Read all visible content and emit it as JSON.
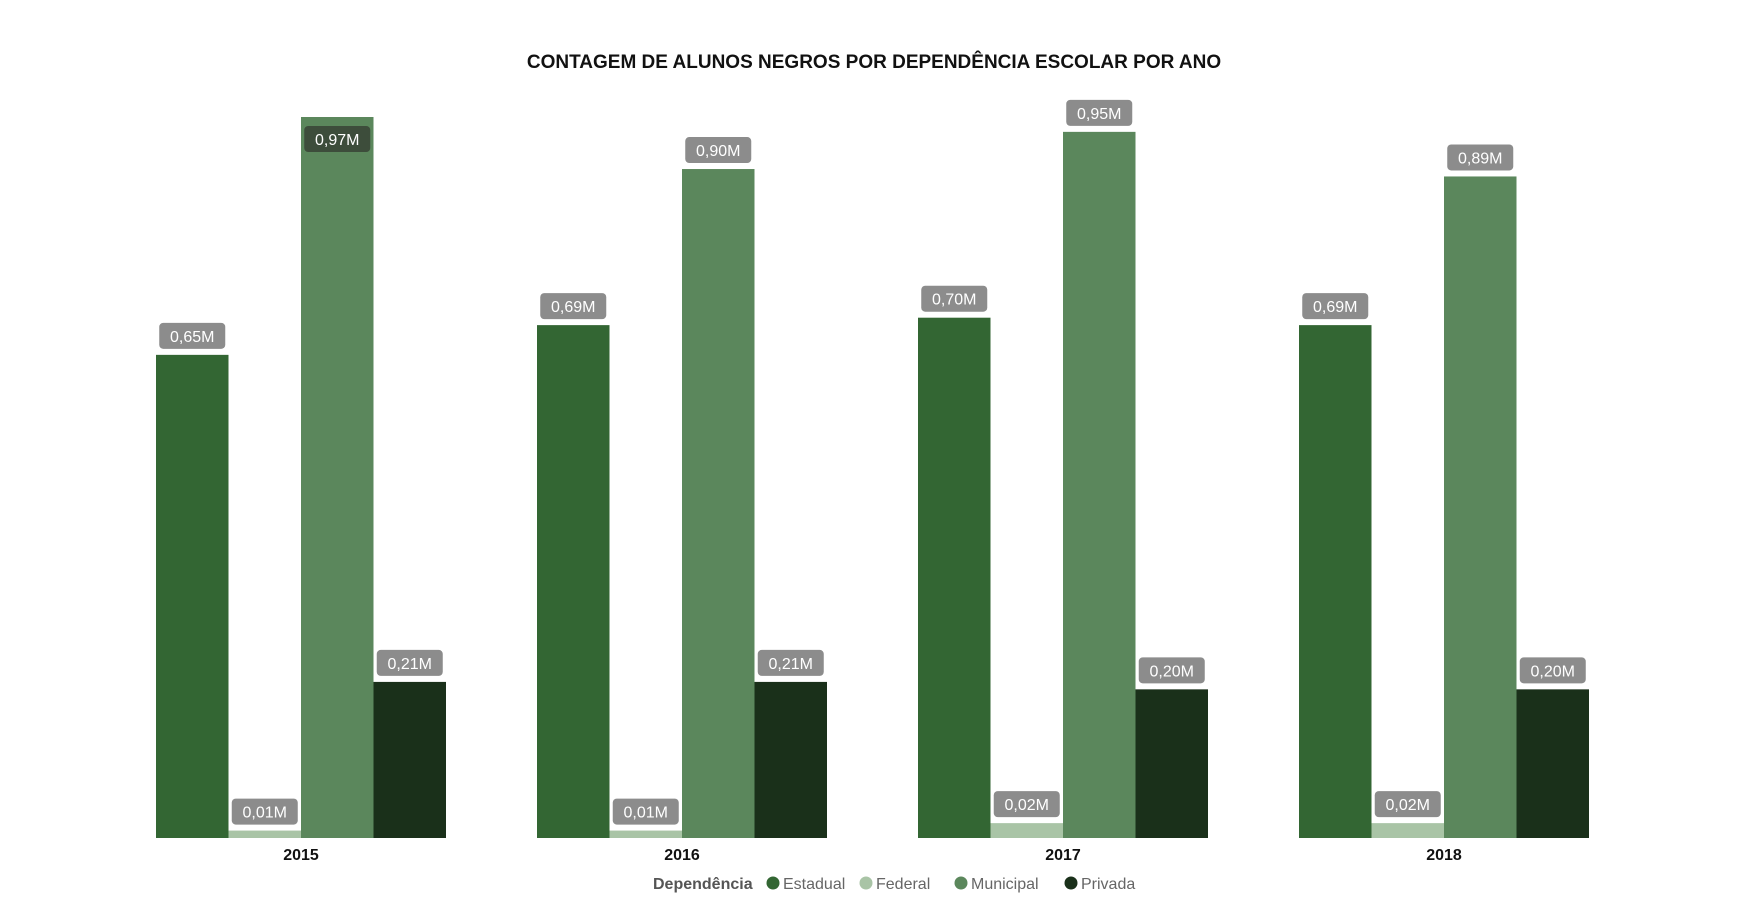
{
  "chart_data": {
    "type": "bar",
    "title": "CONTAGEM DE ALUNOS NEGROS POR DEPENDÊNCIA ESCOLAR POR ANO",
    "xlabel": "",
    "ylabel": "",
    "ylim": [
      0,
      0.97
    ],
    "grid": false,
    "legend_position": "bottom-center",
    "legend_title": "Dependência",
    "categories": [
      "2015",
      "2016",
      "2017",
      "2018"
    ],
    "series": [
      {
        "name": "Estadual",
        "color": "#336633",
        "values": [
          0.65,
          0.69,
          0.7,
          0.69
        ],
        "labels": [
          "0,65M",
          "0,69M",
          "0,70M",
          "0,69M"
        ]
      },
      {
        "name": "Federal",
        "color": "#a9c4a6",
        "values": [
          0.01,
          0.01,
          0.02,
          0.02
        ],
        "labels": [
          "0,01M",
          "0,01M",
          "0,02M",
          "0,02M"
        ]
      },
      {
        "name": "Municipal",
        "color": "#5b875c",
        "values": [
          0.97,
          0.9,
          0.95,
          0.89
        ],
        "labels": [
          "0,97M",
          "0,90M",
          "0,95M",
          "0,89M"
        ]
      },
      {
        "name": "Privada",
        "color": "#1a301a",
        "values": [
          0.21,
          0.21,
          0.2,
          0.2
        ],
        "labels": [
          "0,21M",
          "0,21M",
          "0,20M",
          "0,20M"
        ]
      }
    ],
    "label_box_color": "#8c8c8c",
    "inside_label_box_color": "#3d4d3b"
  }
}
